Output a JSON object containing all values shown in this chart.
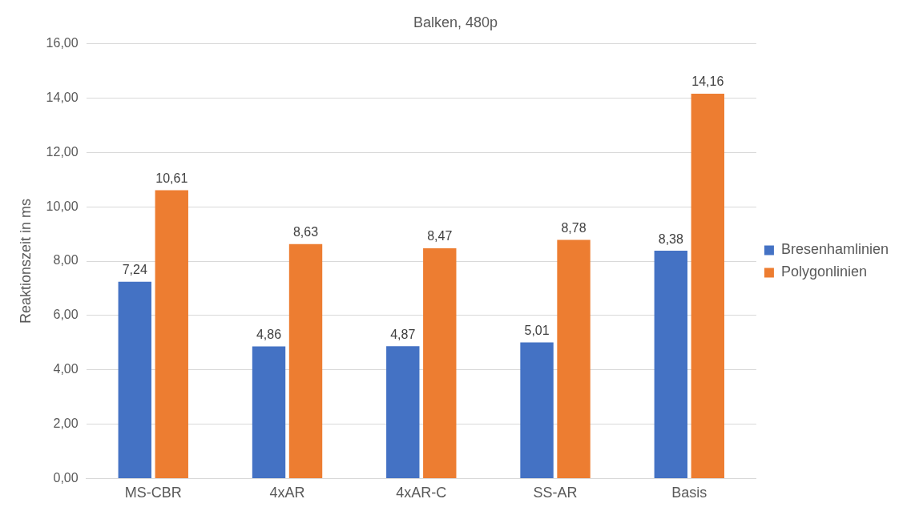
{
  "chart_data": {
    "type": "bar",
    "title": "Balken, 480p",
    "ylabel": "Reaktionszeit in ms",
    "categories": [
      "MS-CBR",
      "4xAR",
      "4xAR-C",
      "SS-AR",
      "Basis"
    ],
    "series": [
      {
        "name": "Bresenhamlinien",
        "color": "#4472c4",
        "values": [
          7.24,
          4.86,
          4.87,
          5.01,
          8.38
        ],
        "value_labels": [
          "7,24",
          "4,86",
          "4,87",
          "5,01",
          "8,38"
        ]
      },
      {
        "name": "Polygonlinien",
        "color": "#ed7d31",
        "values": [
          10.61,
          8.63,
          8.47,
          8.78,
          14.16
        ],
        "value_labels": [
          "10,61",
          "8,63",
          "8,47",
          "8,78",
          "14,16"
        ]
      }
    ],
    "ylim": [
      0,
      16
    ],
    "yticks": [
      {
        "value": 0,
        "label": "0,00"
      },
      {
        "value": 2,
        "label": "2,00"
      },
      {
        "value": 4,
        "label": "4,00"
      },
      {
        "value": 6,
        "label": "6,00"
      },
      {
        "value": 8,
        "label": "8,00"
      },
      {
        "value": 10,
        "label": "10,00"
      },
      {
        "value": 12,
        "label": "12,00"
      },
      {
        "value": 14,
        "label": "14,00"
      },
      {
        "value": 16,
        "label": "16,00"
      }
    ],
    "grid": "y",
    "legend": "right"
  }
}
